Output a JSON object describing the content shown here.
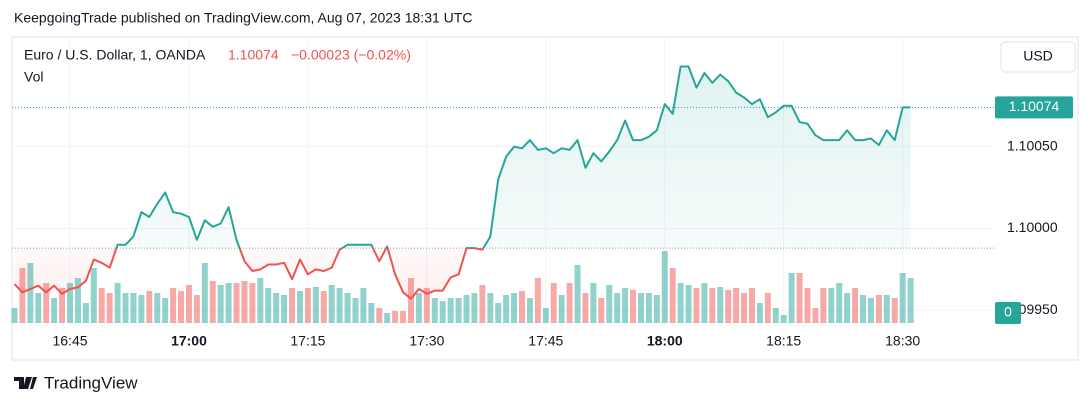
{
  "page": {
    "published": "KeepgoingTrade published on TradingView.com, Aug 07, 2023 18:31 UTC",
    "brand": "TradingView"
  },
  "chart_data": {
    "type": "line",
    "title": "Euro / U.S. Dollar, 1, OANDA",
    "change": "−0.00023 (−0.02%)",
    "currency": "USD",
    "color": "#26a69a",
    "below_color": "#ef5350",
    "baseline": 1.09988,
    "last_price": {
      "value": 1.10074,
      "label": "1.10074"
    },
    "ylim": [
      1.09941,
      1.10117
    ],
    "yticks": [
      {
        "value": 1.1005,
        "label": "1.10050"
      },
      {
        "value": 1.1,
        "label": "1.10000"
      },
      {
        "value": 1.0995,
        "label": "1.09950"
      }
    ],
    "categories": [
      null,
      null,
      null,
      null,
      null,
      null,
      null,
      "16:45",
      null,
      null,
      null,
      null,
      null,
      null,
      null,
      null,
      null,
      null,
      null,
      null,
      null,
      null,
      "17:00",
      null,
      null,
      null,
      null,
      null,
      null,
      null,
      null,
      null,
      null,
      null,
      null,
      null,
      null,
      "17:15",
      null,
      null,
      null,
      null,
      null,
      null,
      null,
      null,
      null,
      null,
      null,
      null,
      null,
      null,
      "17:30",
      null,
      null,
      null,
      null,
      null,
      null,
      null,
      null,
      null,
      null,
      null,
      null,
      null,
      null,
      "17:45",
      null,
      null,
      null,
      null,
      null,
      null,
      null,
      null,
      null,
      null,
      null,
      null,
      null,
      null,
      "18:00",
      null,
      null,
      null,
      null,
      null,
      null,
      null,
      null,
      null,
      null,
      null,
      null,
      null,
      null,
      "18:15",
      null,
      null,
      null,
      null,
      null,
      null,
      null,
      null,
      null,
      null,
      null,
      null,
      null,
      null,
      "18:30",
      null
    ],
    "values": [
      1.09966,
      1.09961,
      1.09963,
      1.09965,
      1.09961,
      1.09965,
      1.0996,
      1.09963,
      1.09964,
      1.09968,
      1.09981,
      1.09979,
      1.09976,
      1.0999,
      1.0999,
      1.09995,
      1.1001,
      1.10007,
      1.10015,
      1.10022,
      1.1001,
      1.10009,
      1.10007,
      1.09993,
      1.10005,
      1.10001,
      1.10003,
      1.10013,
      1.09993,
      1.0998,
      1.09974,
      1.09975,
      1.09978,
      1.09978,
      1.09979,
      1.09969,
      1.09981,
      1.09972,
      1.09975,
      1.09974,
      1.09976,
      1.09987,
      1.0999,
      1.0999,
      1.0999,
      1.0999,
      1.0998,
      1.09989,
      1.09972,
      1.09961,
      1.09957,
      1.09963,
      1.0996,
      1.09962,
      1.09962,
      1.0997,
      1.09972,
      1.09988,
      1.09988,
      1.09987,
      1.09995,
      1.1003,
      1.10044,
      1.1005,
      1.10049,
      1.10054,
      1.10048,
      1.10049,
      1.10046,
      1.10049,
      1.10048,
      1.10054,
      1.10037,
      1.10046,
      1.10041,
      1.10047,
      1.10054,
      1.10066,
      1.10054,
      1.10054,
      1.10056,
      1.1006,
      1.10076,
      1.1007,
      1.10099,
      1.10099,
      1.10086,
      1.10095,
      1.10089,
      1.10094,
      1.1009,
      1.10083,
      1.1008,
      1.10076,
      1.10079,
      1.10068,
      1.10071,
      1.10075,
      1.10075,
      1.10065,
      1.10064,
      1.10057,
      1.10054,
      1.10054,
      1.10054,
      1.1006,
      1.10054,
      1.10054,
      1.10055,
      1.10051,
      1.1006,
      1.10054,
      1.10074,
      1.10074
    ],
    "volume": {
      "label": "Vol",
      "ylim": [
        0,
        100
      ],
      "values": [
        15,
        55,
        60,
        30,
        40,
        25,
        35,
        40,
        45,
        20,
        55,
        35,
        30,
        40,
        30,
        30,
        28,
        32,
        30,
        25,
        35,
        32,
        38,
        28,
        60,
        42,
        38,
        40,
        40,
        42,
        40,
        45,
        35,
        30,
        28,
        35,
        32,
        35,
        36,
        32,
        38,
        35,
        30,
        25,
        35,
        20,
        15,
        10,
        12,
        12,
        45,
        30,
        35,
        25,
        22,
        25,
        25,
        28,
        30,
        38,
        30,
        20,
        28,
        30,
        32,
        25,
        45,
        15,
        40,
        28,
        40,
        58,
        30,
        40,
        25,
        38,
        30,
        35,
        33,
        30,
        30,
        28,
        72,
        55,
        40,
        38,
        35,
        40,
        35,
        36,
        33,
        35,
        30,
        35,
        20,
        30,
        15,
        8,
        50,
        50,
        35,
        15,
        35,
        35,
        40,
        30,
        35,
        28,
        25,
        28,
        28,
        25,
        50,
        45
      ]
    }
  }
}
